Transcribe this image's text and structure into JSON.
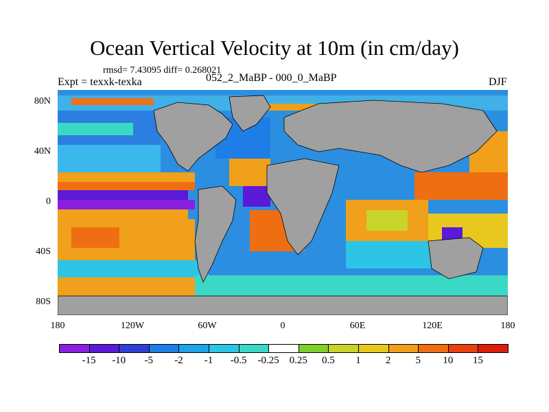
{
  "title": "Ocean Vertical Velocity at 10m (in cm/day)",
  "stats": "rmsd= 7.43095 diff= 0.268021",
  "expt": "Expt = texxk-texka",
  "difference_label": "052_2_MaBP - 000_0_MaBP",
  "season": "DJF",
  "y_ticks": [
    "80N",
    "40N",
    "0",
    "40S",
    "80S"
  ],
  "y_tick_values": [
    80,
    40,
    0,
    -40,
    -80
  ],
  "x_ticks": [
    "180",
    "120W",
    "60W",
    "0",
    "60E",
    "120E",
    "180"
  ],
  "x_tick_values": [
    -180,
    -120,
    -60,
    0,
    60,
    120,
    180
  ],
  "colorbar": {
    "labels": [
      "-15",
      "-10",
      "-5",
      "-2",
      "-1",
      "-0.5",
      "-0.25",
      "0.25",
      "0.5",
      "1",
      "2",
      "5",
      "10",
      "15"
    ],
    "colors": [
      "#8a1fe0",
      "#5a1ad8",
      "#2f3fd6",
      "#1e7ee6",
      "#1ea2e8",
      "#2ec4e6",
      "#3cd8c6",
      "#ffffff",
      "#7ed02a",
      "#c8d42a",
      "#e8c81e",
      "#f0a01a",
      "#f06e12",
      "#e8400e",
      "#d8200a"
    ]
  },
  "colors": {
    "land": "#a0a0a0",
    "ocean_bg": "#2c8ee0"
  },
  "chart_data": {
    "type": "map",
    "variable": "ocean vertical velocity at 10m",
    "units": "cm/day",
    "projection": "cylindrical equidistant",
    "lon_range": [
      -180,
      180
    ],
    "lat_range": [
      -90,
      90
    ],
    "contour_levels": [
      -15,
      -10,
      -5,
      -2,
      -1,
      -0.5,
      -0.25,
      0.25,
      0.5,
      1,
      2,
      5,
      10,
      15
    ]
  }
}
